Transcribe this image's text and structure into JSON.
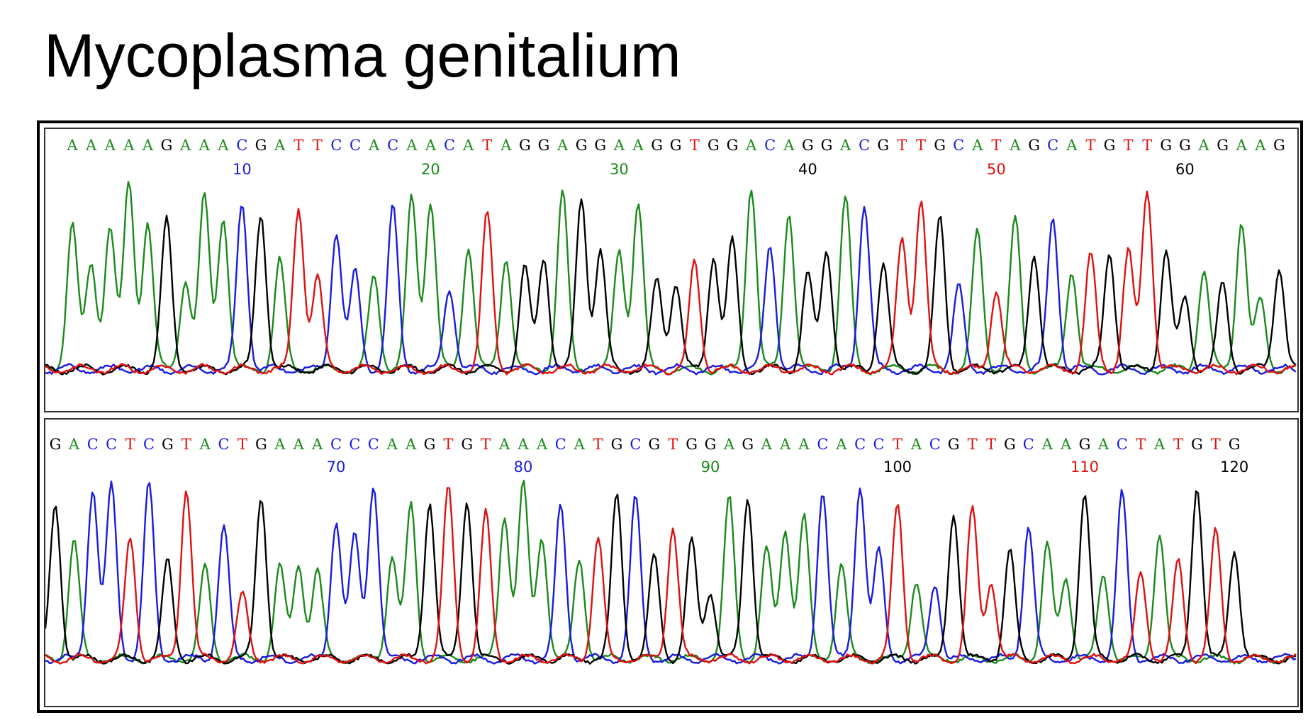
{
  "title": "Mycoplasma genitalium",
  "chart_data": {
    "type": "line",
    "colors": {
      "A": "#1a8a1a",
      "C": "#1a1ae0",
      "G": "#000000",
      "T": "#e01010"
    },
    "panels": [
      {
        "sequence": "AAAAAGAAACGATTCCACAACATAGGAGGAAGGTGGACAGGACGTTGCATAGCATGTTGGAGAAG",
        "position_labels": [
          {
            "label": "10",
            "base": "C"
          },
          {
            "label": "20",
            "base": "A"
          },
          {
            "label": "30",
            "base": "A"
          },
          {
            "label": "40",
            "base": "G"
          },
          {
            "label": "50",
            "base": "T"
          },
          {
            "label": "60",
            "base": "G"
          }
        ]
      },
      {
        "sequence": "GACCTCGTACTGAAACCCAAGTGTAAACATGCGTGGAGAAACACCTACGTTGCAAGACTATGTG",
        "position_labels": [
          {
            "label": "70",
            "base": "C"
          },
          {
            "label": "80",
            "base": "C"
          },
          {
            "label": "90",
            "base": "A"
          },
          {
            "label": "100",
            "base": "G"
          },
          {
            "label": "110",
            "base": "T"
          },
          {
            "label": "120",
            "base": "G"
          }
        ]
      }
    ]
  }
}
